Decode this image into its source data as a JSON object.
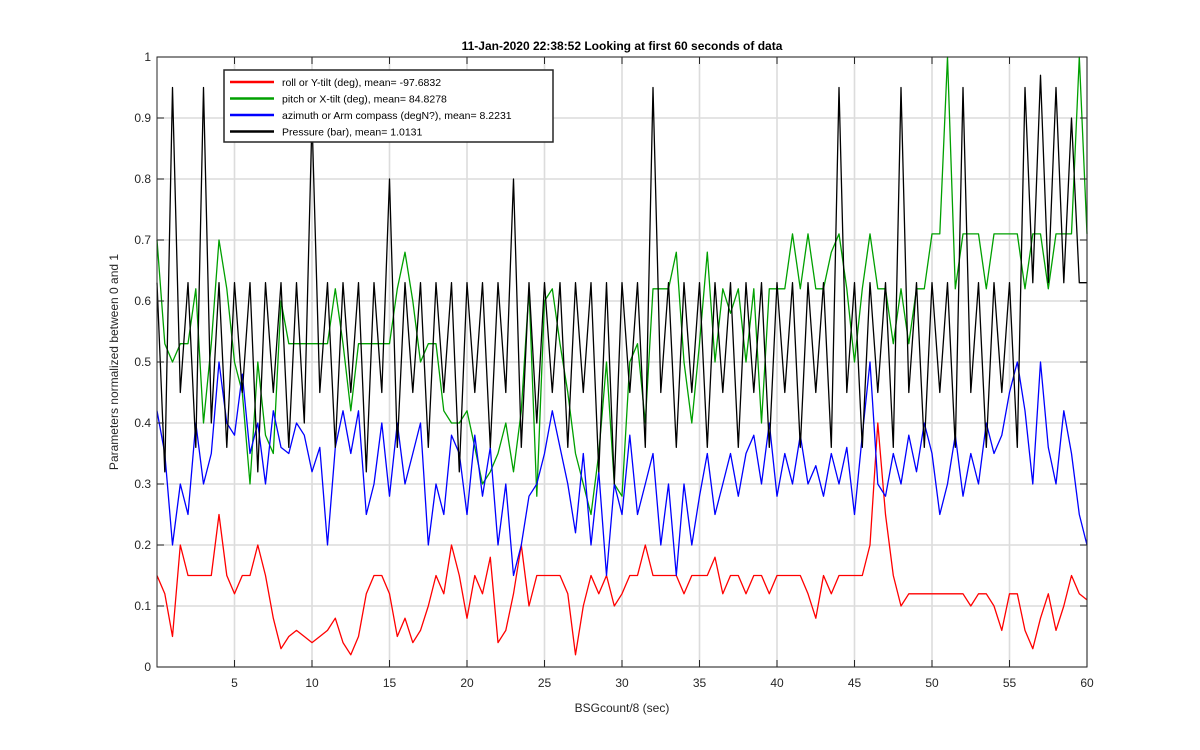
{
  "chart_data": {
    "type": "line",
    "title": "11-Jan-2020 22:38:52 Looking at first 60 seconds of data",
    "xlabel": "BSGcount/8 (sec)",
    "ylabel": "Parameters normalized between 0 and 1",
    "xlim": [
      0,
      60
    ],
    "ylim": [
      0,
      1
    ],
    "grid": true,
    "legend_location": "top-left",
    "x_ticks": [
      {
        "value": 5,
        "label": "5"
      },
      {
        "value": 10,
        "label": "10"
      },
      {
        "value": 15,
        "label": "15"
      },
      {
        "value": 20,
        "label": "20"
      },
      {
        "value": 25,
        "label": "25"
      },
      {
        "value": 30,
        "label": "30"
      },
      {
        "value": 35,
        "label": "35"
      },
      {
        "value": 40,
        "label": "40"
      },
      {
        "value": 45,
        "label": "45"
      },
      {
        "value": 50,
        "label": "50"
      },
      {
        "value": 55,
        "label": "55"
      },
      {
        "value": 60,
        "label": "60"
      }
    ],
    "y_ticks": [
      {
        "value": 0,
        "label": "0"
      },
      {
        "value": 0.1,
        "label": "0.1"
      },
      {
        "value": 0.2,
        "label": "0.2"
      },
      {
        "value": 0.3,
        "label": "0.3"
      },
      {
        "value": 0.4,
        "label": "0.4"
      },
      {
        "value": 0.5,
        "label": "0.5"
      },
      {
        "value": 0.6,
        "label": "0.6"
      },
      {
        "value": 0.7,
        "label": "0.7"
      },
      {
        "value": 0.8,
        "label": "0.8"
      },
      {
        "value": 0.9,
        "label": "0.9"
      },
      {
        "value": 1,
        "label": "1"
      }
    ],
    "series": [
      {
        "name": "roll or Y-tilt (deg), mean= -97.6832",
        "color": "#ff0000",
        "x": [
          0,
          0.5,
          1,
          1.5,
          2,
          2.5,
          3,
          3.5,
          4,
          4.5,
          5,
          5.5,
          6,
          6.5,
          7,
          7.5,
          8,
          8.5,
          9,
          9.5,
          10,
          10.5,
          11,
          11.5,
          12,
          12.5,
          13,
          13.5,
          14,
          14.5,
          15,
          15.5,
          16,
          16.5,
          17,
          17.5,
          18,
          18.5,
          19,
          19.5,
          20,
          20.5,
          21,
          21.5,
          22,
          22.5,
          23,
          23.5,
          24,
          24.5,
          25,
          25.5,
          26,
          26.5,
          27,
          27.5,
          28,
          28.5,
          29,
          29.5,
          30,
          30.5,
          31,
          31.5,
          32,
          32.5,
          33,
          33.5,
          34,
          34.5,
          35,
          35.5,
          36,
          36.5,
          37,
          37.5,
          38,
          38.5,
          39,
          39.5,
          40,
          40.5,
          41,
          41.5,
          42,
          42.5,
          43,
          43.5,
          44,
          44.5,
          45,
          45.5,
          46,
          46.5,
          47,
          47.5,
          48,
          48.5,
          49,
          49.5,
          50,
          50.5,
          51,
          51.5,
          52,
          52.5,
          53,
          53.5,
          54,
          54.5,
          55,
          55.5,
          56,
          56.5,
          57,
          57.5,
          58,
          58.5,
          59,
          59.5,
          60
        ],
        "y": [
          0.15,
          0.12,
          0.05,
          0.2,
          0.15,
          0.15,
          0.15,
          0.15,
          0.25,
          0.15,
          0.12,
          0.15,
          0.15,
          0.2,
          0.15,
          0.08,
          0.03,
          0.05,
          0.06,
          0.05,
          0.04,
          0.05,
          0.06,
          0.08,
          0.04,
          0.02,
          0.05,
          0.12,
          0.15,
          0.15,
          0.12,
          0.05,
          0.08,
          0.04,
          0.06,
          0.1,
          0.15,
          0.12,
          0.2,
          0.15,
          0.08,
          0.15,
          0.12,
          0.18,
          0.04,
          0.06,
          0.12,
          0.2,
          0.1,
          0.15,
          0.15,
          0.15,
          0.15,
          0.12,
          0.02,
          0.1,
          0.15,
          0.12,
          0.15,
          0.1,
          0.12,
          0.15,
          0.15,
          0.2,
          0.15,
          0.15,
          0.15,
          0.15,
          0.12,
          0.15,
          0.15,
          0.15,
          0.18,
          0.12,
          0.15,
          0.15,
          0.12,
          0.15,
          0.15,
          0.12,
          0.15,
          0.15,
          0.15,
          0.15,
          0.12,
          0.08,
          0.15,
          0.12,
          0.15,
          0.15,
          0.15,
          0.15,
          0.2,
          0.4,
          0.25,
          0.15,
          0.1,
          0.12,
          0.12,
          0.12,
          0.12,
          0.12,
          0.12,
          0.12,
          0.12,
          0.1,
          0.12,
          0.12,
          0.1,
          0.06,
          0.12,
          0.12,
          0.06,
          0.03,
          0.08,
          0.12,
          0.06,
          0.1,
          0.15,
          0.12,
          0.11
        ]
      },
      {
        "name": "pitch or X-tilt (deg), mean= 84.8278",
        "color": "#00a000",
        "x": [
          0,
          0.5,
          1,
          1.5,
          2,
          2.5,
          3,
          3.5,
          4,
          4.5,
          5,
          5.5,
          6,
          6.5,
          7,
          7.5,
          8,
          8.5,
          9,
          9.5,
          10,
          10.5,
          11,
          11.5,
          12,
          12.5,
          13,
          13.5,
          14,
          14.5,
          15,
          15.5,
          16,
          16.5,
          17,
          17.5,
          18,
          18.5,
          19,
          19.5,
          20,
          20.5,
          21,
          21.5,
          22,
          22.5,
          23,
          23.5,
          24,
          24.5,
          25,
          25.5,
          26,
          26.5,
          27,
          27.5,
          28,
          28.5,
          29,
          29.5,
          30,
          30.5,
          31,
          31.5,
          32,
          32.5,
          33,
          33.5,
          34,
          34.5,
          35,
          35.5,
          36,
          36.5,
          37,
          37.5,
          38,
          38.5,
          39,
          39.5,
          40,
          40.5,
          41,
          41.5,
          42,
          42.5,
          43,
          43.5,
          44,
          44.5,
          45,
          45.5,
          46,
          46.5,
          47,
          47.5,
          48,
          48.5,
          49,
          49.5,
          50,
          50.5,
          51,
          51.5,
          52,
          52.5,
          53,
          53.5,
          54,
          54.5,
          55,
          55.5,
          56,
          56.5,
          57,
          57.5,
          58,
          58.5,
          59,
          59.5,
          60
        ],
        "y": [
          0.7,
          0.53,
          0.5,
          0.53,
          0.53,
          0.62,
          0.4,
          0.53,
          0.7,
          0.62,
          0.5,
          0.45,
          0.3,
          0.5,
          0.38,
          0.35,
          0.6,
          0.53,
          0.53,
          0.53,
          0.53,
          0.53,
          0.53,
          0.62,
          0.53,
          0.42,
          0.53,
          0.53,
          0.53,
          0.53,
          0.53,
          0.62,
          0.68,
          0.6,
          0.5,
          0.53,
          0.53,
          0.42,
          0.4,
          0.4,
          0.42,
          0.36,
          0.3,
          0.32,
          0.35,
          0.4,
          0.32,
          0.42,
          0.62,
          0.28,
          0.6,
          0.62,
          0.53,
          0.45,
          0.35,
          0.3,
          0.25,
          0.35,
          0.5,
          0.3,
          0.28,
          0.5,
          0.53,
          0.4,
          0.62,
          0.62,
          0.62,
          0.68,
          0.5,
          0.4,
          0.53,
          0.68,
          0.5,
          0.62,
          0.58,
          0.62,
          0.5,
          0.62,
          0.4,
          0.62,
          0.62,
          0.62,
          0.71,
          0.62,
          0.71,
          0.62,
          0.62,
          0.68,
          0.71,
          0.62,
          0.5,
          0.62,
          0.71,
          0.62,
          0.62,
          0.53,
          0.62,
          0.53,
          0.62,
          0.62,
          0.71,
          0.71,
          1.0,
          0.62,
          0.71,
          0.71,
          0.71,
          0.62,
          0.71,
          0.71,
          0.71,
          0.71,
          0.62,
          0.71,
          0.71,
          0.62,
          0.71,
          0.71,
          0.71,
          1.0,
          0.71
        ]
      },
      {
        "name": "azimuth or Arm compass (degN?), mean= 8.2231",
        "color": "#0000ff",
        "x": [
          0,
          0.5,
          1,
          1.5,
          2,
          2.5,
          3,
          3.5,
          4,
          4.5,
          5,
          5.5,
          6,
          6.5,
          7,
          7.5,
          8,
          8.5,
          9,
          9.5,
          10,
          10.5,
          11,
          11.5,
          12,
          12.5,
          13,
          13.5,
          14,
          14.5,
          15,
          15.5,
          16,
          16.5,
          17,
          17.5,
          18,
          18.5,
          19,
          19.5,
          20,
          20.5,
          21,
          21.5,
          22,
          22.5,
          23,
          23.5,
          24,
          24.5,
          25,
          25.5,
          26,
          26.5,
          27,
          27.5,
          28,
          28.5,
          29,
          29.5,
          30,
          30.5,
          31,
          31.5,
          32,
          32.5,
          33,
          33.5,
          34,
          34.5,
          35,
          35.5,
          36,
          36.5,
          37,
          37.5,
          38,
          38.5,
          39,
          39.5,
          40,
          40.5,
          41,
          41.5,
          42,
          42.5,
          43,
          43.5,
          44,
          44.5,
          45,
          45.5,
          46,
          46.5,
          47,
          47.5,
          48,
          48.5,
          49,
          49.5,
          50,
          50.5,
          51,
          51.5,
          52,
          52.5,
          53,
          53.5,
          54,
          54.5,
          55,
          55.5,
          56,
          56.5,
          57,
          57.5,
          58,
          58.5,
          59,
          59.5,
          60
        ],
        "y": [
          0.42,
          0.35,
          0.2,
          0.3,
          0.25,
          0.4,
          0.3,
          0.35,
          0.5,
          0.4,
          0.38,
          0.48,
          0.35,
          0.4,
          0.3,
          0.42,
          0.36,
          0.35,
          0.4,
          0.38,
          0.32,
          0.36,
          0.2,
          0.36,
          0.42,
          0.35,
          0.42,
          0.25,
          0.3,
          0.4,
          0.28,
          0.4,
          0.3,
          0.35,
          0.4,
          0.2,
          0.3,
          0.25,
          0.38,
          0.35,
          0.25,
          0.38,
          0.28,
          0.36,
          0.2,
          0.3,
          0.15,
          0.2,
          0.28,
          0.3,
          0.35,
          0.42,
          0.36,
          0.3,
          0.22,
          0.35,
          0.2,
          0.32,
          0.15,
          0.3,
          0.25,
          0.38,
          0.25,
          0.3,
          0.35,
          0.2,
          0.3,
          0.15,
          0.3,
          0.2,
          0.28,
          0.35,
          0.25,
          0.3,
          0.35,
          0.28,
          0.35,
          0.38,
          0.3,
          0.4,
          0.28,
          0.35,
          0.3,
          0.38,
          0.3,
          0.33,
          0.28,
          0.35,
          0.3,
          0.36,
          0.25,
          0.38,
          0.5,
          0.3,
          0.28,
          0.35,
          0.3,
          0.38,
          0.32,
          0.4,
          0.35,
          0.25,
          0.3,
          0.38,
          0.28,
          0.35,
          0.3,
          0.4,
          0.35,
          0.38,
          0.45,
          0.5,
          0.42,
          0.3,
          0.5,
          0.36,
          0.3,
          0.42,
          0.35,
          0.25,
          0.2
        ]
      },
      {
        "name": "Pressure (bar), mean= 1.0131",
        "color": "#000000",
        "x": [
          0,
          0.5,
          1,
          1.5,
          2,
          2.5,
          3,
          3.5,
          4,
          4.5,
          5,
          5.5,
          6,
          6.5,
          7,
          7.5,
          8,
          8.5,
          9,
          9.5,
          10,
          10.5,
          11,
          11.5,
          12,
          12.5,
          13,
          13.5,
          14,
          14.5,
          15,
          15.5,
          16,
          16.5,
          17,
          17.5,
          18,
          18.5,
          19,
          19.5,
          20,
          20.5,
          21,
          21.5,
          22,
          22.5,
          23,
          23.5,
          24,
          24.5,
          25,
          25.5,
          26,
          26.5,
          27,
          27.5,
          28,
          28.5,
          29,
          29.5,
          30,
          30.5,
          31,
          31.5,
          32,
          32.5,
          33,
          33.5,
          34,
          34.5,
          35,
          35.5,
          36,
          36.5,
          37,
          37.5,
          38,
          38.5,
          39,
          39.5,
          40,
          40.5,
          41,
          41.5,
          42,
          42.5,
          43,
          43.5,
          44,
          44.5,
          45,
          45.5,
          46,
          46.5,
          47,
          47.5,
          48,
          48.5,
          49,
          49.5,
          50,
          50.5,
          51,
          51.5,
          52,
          52.5,
          53,
          53.5,
          54,
          54.5,
          55,
          55.5,
          56,
          56.5,
          57,
          57.5,
          58,
          58.5,
          59,
          59.5,
          60
        ],
        "y": [
          0.63,
          0.32,
          0.95,
          0.45,
          0.63,
          0.36,
          0.95,
          0.4,
          0.63,
          0.36,
          0.63,
          0.45,
          0.63,
          0.32,
          0.63,
          0.45,
          0.63,
          0.36,
          0.63,
          0.4,
          0.9,
          0.45,
          0.63,
          0.36,
          0.63,
          0.45,
          0.63,
          0.32,
          0.63,
          0.45,
          0.8,
          0.36,
          0.63,
          0.45,
          0.63,
          0.36,
          0.63,
          0.45,
          0.63,
          0.32,
          0.63,
          0.45,
          0.63,
          0.36,
          0.63,
          0.45,
          0.8,
          0.36,
          0.63,
          0.4,
          0.63,
          0.45,
          0.63,
          0.36,
          0.63,
          0.45,
          0.63,
          0.32,
          0.63,
          0.3,
          0.63,
          0.45,
          0.63,
          0.36,
          0.95,
          0.45,
          0.63,
          0.36,
          0.63,
          0.45,
          0.63,
          0.36,
          0.63,
          0.45,
          0.63,
          0.36,
          0.63,
          0.45,
          0.63,
          0.36,
          0.63,
          0.45,
          0.63,
          0.36,
          0.63,
          0.45,
          0.63,
          0.36,
          0.95,
          0.45,
          0.63,
          0.36,
          0.63,
          0.45,
          0.63,
          0.36,
          0.95,
          0.45,
          0.63,
          0.36,
          0.63,
          0.45,
          0.63,
          0.36,
          0.95,
          0.45,
          0.63,
          0.36,
          0.63,
          0.45,
          0.63,
          0.36,
          0.95,
          0.63,
          0.97,
          0.63,
          0.95,
          0.63,
          0.9,
          0.63,
          0.63
        ]
      }
    ]
  }
}
